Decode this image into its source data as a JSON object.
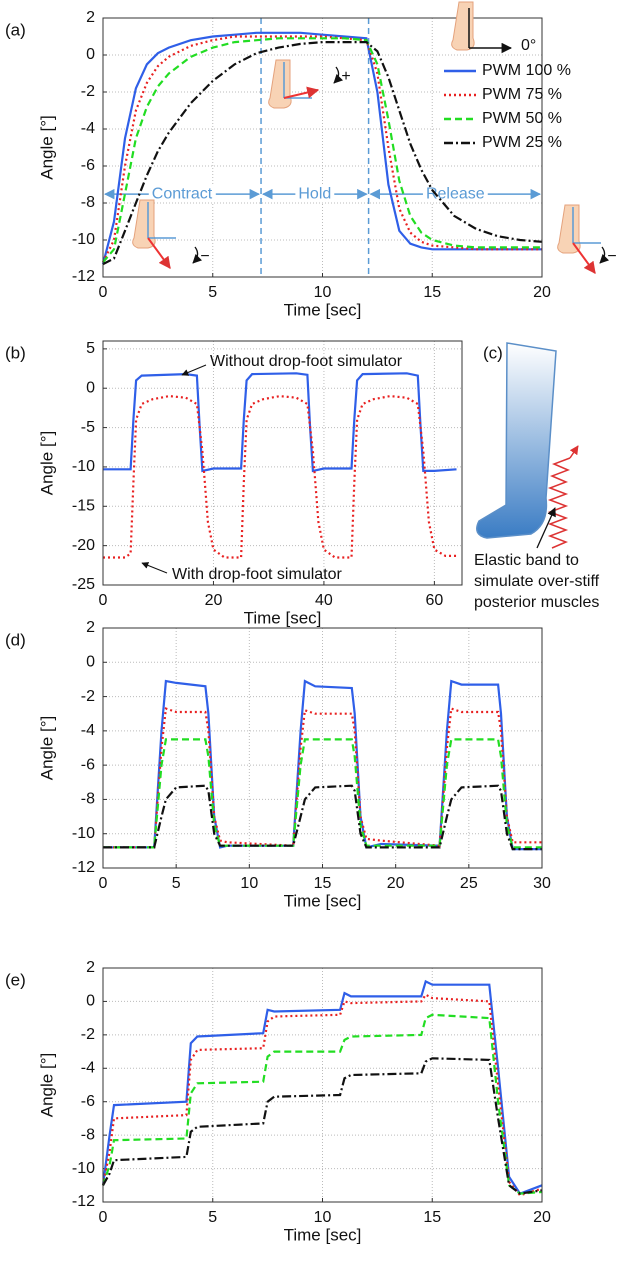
{
  "chart_data": [
    {
      "type": "line",
      "label": "(a)",
      "xlabel": "Time [sec]",
      "ylabel": "Angle [°]",
      "xlim": [
        0,
        20
      ],
      "ylim": [
        -12,
        2
      ],
      "xticks": [
        0,
        5,
        10,
        15,
        20
      ],
      "yticks": [
        2,
        0,
        -2,
        -4,
        -6,
        -8,
        -10,
        -12
      ],
      "grid": true,
      "legend": "upper right",
      "phases": [
        "Contract",
        "Hold",
        "Release"
      ],
      "phase_boundaries": [
        7.2,
        12.1
      ],
      "annotations": [
        "0°",
        "+",
        "−",
        "−"
      ],
      "x": [
        0,
        0.5,
        1,
        1.5,
        2,
        2.5,
        3,
        4,
        5,
        6,
        7,
        8,
        9,
        10,
        11,
        12,
        12.5,
        13,
        13.5,
        14,
        14.5,
        15,
        16,
        17,
        18,
        19,
        20
      ],
      "series": [
        {
          "name": "PWM 100 %",
          "color": "#2f5fe8",
          "style": "solid",
          "values": [
            -11.3,
            -9,
            -4.5,
            -1.8,
            -0.5,
            0.1,
            0.4,
            0.8,
            1.0,
            1.1,
            1.2,
            1.2,
            1.2,
            1.1,
            1.0,
            0.9,
            -2,
            -7,
            -9.5,
            -10.2,
            -10.4,
            -10.5,
            -10.5,
            -10.5,
            -10.5,
            -10.5,
            -10.5
          ]
        },
        {
          "name": "PWM 75 %",
          "color": "#e82020",
          "style": "dotted",
          "values": [
            -11.2,
            -10,
            -6,
            -3,
            -1.5,
            -0.6,
            -0.1,
            0.5,
            0.8,
            1.0,
            1.0,
            1.0,
            1.0,
            1.0,
            0.9,
            0.8,
            -1,
            -5,
            -8.3,
            -9.6,
            -10.1,
            -10.3,
            -10.4,
            -10.5,
            -10.5,
            -10.5,
            -10.5
          ]
        },
        {
          "name": "PWM 50 %",
          "color": "#22dd22",
          "style": "dashed",
          "values": [
            -11.2,
            -10.5,
            -7.5,
            -4.5,
            -2.8,
            -1.7,
            -1.0,
            -0.1,
            0.4,
            0.7,
            0.8,
            0.9,
            0.9,
            0.9,
            0.9,
            0.8,
            -0.5,
            -3.5,
            -6.8,
            -8.7,
            -9.6,
            -10.0,
            -10.3,
            -10.4,
            -10.4,
            -10.4,
            -10.4
          ]
        },
        {
          "name": "PWM 25 %",
          "color": "#111111",
          "style": "dashdot",
          "values": [
            -11.3,
            -11,
            -9.5,
            -8,
            -6.5,
            -5.2,
            -4.2,
            -2.6,
            -1.4,
            -0.5,
            0.1,
            0.4,
            0.6,
            0.7,
            0.7,
            0.7,
            0.2,
            -1.2,
            -3,
            -4.8,
            -6.2,
            -7.3,
            -8.7,
            -9.4,
            -9.8,
            -10.0,
            -10.1
          ]
        }
      ]
    },
    {
      "type": "line",
      "label": "(b)",
      "xlabel": "Time [sec]",
      "ylabel": "Angle [°]",
      "xlim": [
        0,
        65
      ],
      "ylim": [
        -25,
        6
      ],
      "xticks": [
        0,
        20,
        40,
        60
      ],
      "yticks": [
        5,
        0,
        -5,
        -10,
        -15,
        -20,
        -25
      ],
      "grid": true,
      "legend": "inline",
      "series": [
        {
          "name": "Without drop-foot simulator",
          "color": "#2f5fe8",
          "style": "solid",
          "x": [
            0,
            5,
            5.5,
            6,
            7,
            15,
            17,
            17.5,
            18,
            20,
            25,
            25.5,
            26,
            27,
            35,
            37,
            37.5,
            38,
            40,
            45,
            45.5,
            46,
            47,
            55,
            57,
            57.5,
            58,
            60,
            64
          ],
          "values": [
            -10.3,
            -10.3,
            -4,
            1,
            1.6,
            1.8,
            1.6,
            -5,
            -10.5,
            -10.2,
            -10.2,
            -4,
            1,
            1.8,
            1.9,
            1.7,
            -5,
            -10.5,
            -10.2,
            -10.2,
            -4,
            1,
            1.8,
            1.9,
            1.6,
            -5,
            -10.5,
            -10.5,
            -10.3
          ]
        },
        {
          "name": "With drop-foot simulator",
          "color": "#e82020",
          "style": "dotted",
          "x": [
            0,
            4,
            5,
            5.5,
            6,
            7,
            9,
            12,
            15,
            17,
            18,
            19,
            20,
            22,
            25,
            25.5,
            26,
            27,
            29,
            32,
            35,
            37,
            38,
            39,
            40,
            42,
            45,
            45.5,
            46,
            47,
            49,
            52,
            55,
            57,
            58,
            59,
            60,
            62,
            64
          ],
          "values": [
            -21.5,
            -21.5,
            -21,
            -12,
            -4,
            -2,
            -1.4,
            -1,
            -1.2,
            -2,
            -8,
            -17,
            -20.5,
            -21.5,
            -21.5,
            -12,
            -4,
            -2,
            -1.4,
            -1,
            -1.2,
            -2,
            -8,
            -17,
            -20.5,
            -21.5,
            -21.5,
            -12,
            -4,
            -2,
            -1.4,
            -1,
            -1.2,
            -2,
            -8,
            -17,
            -20.5,
            -21.3,
            -21.3
          ]
        }
      ]
    },
    {
      "type": "line",
      "label": "(d)",
      "xlabel": "Time [sec]",
      "ylabel": "Angle [°]",
      "xlim": [
        0,
        30
      ],
      "ylim": [
        -12,
        2
      ],
      "xticks": [
        0,
        5,
        10,
        15,
        20,
        25,
        30
      ],
      "yticks": [
        2,
        0,
        -2,
        -4,
        -6,
        -8,
        -10,
        -12
      ],
      "grid": true,
      "x": [
        0,
        3.5,
        4,
        4.3,
        5,
        7,
        7.2,
        7.6,
        8,
        8.5,
        13,
        13.5,
        13.8,
        14.5,
        17,
        17.2,
        17.6,
        18,
        19,
        23,
        23.5,
        23.8,
        24.5,
        27,
        27.2,
        27.6,
        28,
        30
      ],
      "series": [
        {
          "color": "#2f5fe8",
          "style": "solid",
          "values": [
            -10.8,
            -10.8,
            -4,
            -1.1,
            -1.2,
            -1.4,
            -3,
            -9,
            -10.8,
            -10.7,
            -10.7,
            -4,
            -1.1,
            -1.4,
            -1.5,
            -3,
            -9,
            -10.8,
            -10.6,
            -10.7,
            -4,
            -1.1,
            -1.3,
            -1.3,
            -3,
            -9,
            -10.9,
            -10.9
          ]
        },
        {
          "color": "#e82020",
          "style": "dotted",
          "values": [
            -10.8,
            -10.8,
            -5,
            -2.7,
            -2.9,
            -2.9,
            -4,
            -9,
            -10.4,
            -10.5,
            -10.7,
            -5,
            -2.8,
            -3.0,
            -3.0,
            -4,
            -9,
            -10.3,
            -10.4,
            -10.7,
            -5,
            -2.7,
            -2.9,
            -2.9,
            -4,
            -9,
            -10.5,
            -10.5
          ]
        },
        {
          "color": "#22dd22",
          "style": "dashed",
          "values": [
            -10.8,
            -10.8,
            -6,
            -4.5,
            -4.5,
            -4.5,
            -5.5,
            -9.5,
            -10.7,
            -10.7,
            -10.7,
            -6,
            -4.5,
            -4.5,
            -4.5,
            -5.5,
            -9.5,
            -10.7,
            -10.7,
            -10.7,
            -6,
            -4.5,
            -4.5,
            -4.5,
            -5.5,
            -9.5,
            -10.8,
            -10.8
          ]
        },
        {
          "color": "#111111",
          "style": "dashdot",
          "values": [
            -10.8,
            -10.8,
            -9,
            -8,
            -7.3,
            -7.2,
            -7.5,
            -10,
            -10.7,
            -10.7,
            -10.7,
            -9,
            -8,
            -7.3,
            -7.2,
            -7.5,
            -10,
            -10.8,
            -10.8,
            -10.8,
            -9,
            -8,
            -7.3,
            -7.2,
            -7.5,
            -10,
            -10.9,
            -10.9
          ]
        }
      ]
    },
    {
      "type": "line",
      "label": "(e)",
      "xlabel": "Time [sec]",
      "ylabel": "Angle [°]",
      "xlim": [
        0,
        20
      ],
      "ylim": [
        -12,
        2
      ],
      "xticks": [
        0,
        5,
        10,
        15,
        20
      ],
      "yticks": [
        2,
        0,
        -2,
        -4,
        -6,
        -8,
        -10,
        -12
      ],
      "grid": true,
      "x": [
        0,
        0.3,
        0.5,
        3.8,
        4,
        4.3,
        7.3,
        7.5,
        7.8,
        10.8,
        11,
        11.3,
        14.5,
        14.7,
        15,
        17.6,
        18,
        18.5,
        19,
        20
      ],
      "series": [
        {
          "color": "#2f5fe8",
          "style": "solid",
          "values": [
            -11,
            -8,
            -6.2,
            -6,
            -2.5,
            -2.1,
            -1.9,
            -0.5,
            -0.6,
            -0.5,
            0.5,
            0.3,
            0.3,
            1.2,
            1.0,
            1.0,
            -4,
            -10.5,
            -11.5,
            -11
          ]
        },
        {
          "color": "#e82020",
          "style": "dotted",
          "values": [
            -11,
            -9,
            -7,
            -6.8,
            -3.5,
            -2.9,
            -2.8,
            -1.2,
            -0.9,
            -0.8,
            0,
            -0.1,
            0,
            0.4,
            0.2,
            0,
            -5,
            -10.8,
            -11.6,
            -11.2
          ]
        },
        {
          "color": "#22dd22",
          "style": "dashed",
          "values": [
            -11,
            -9.8,
            -8.3,
            -8.2,
            -5.5,
            -4.9,
            -4.8,
            -3.3,
            -3.0,
            -3.0,
            -2.3,
            -2.1,
            -2.0,
            -1.0,
            -0.8,
            -1.0,
            -6,
            -11,
            -11.5,
            -11.4
          ]
        },
        {
          "color": "#111111",
          "style": "dashdot",
          "values": [
            -11,
            -10.3,
            -9.5,
            -9.3,
            -7.8,
            -7.5,
            -7.3,
            -6,
            -5.7,
            -5.6,
            -4.6,
            -4.4,
            -4.3,
            -3.6,
            -3.4,
            -3.5,
            -7,
            -11,
            -11.5,
            -11.3
          ]
        }
      ]
    }
  ],
  "illustration": {
    "label": "(c)",
    "caption": [
      "Elastic band to",
      "simulate over-stiff",
      "posterior muscles"
    ]
  }
}
